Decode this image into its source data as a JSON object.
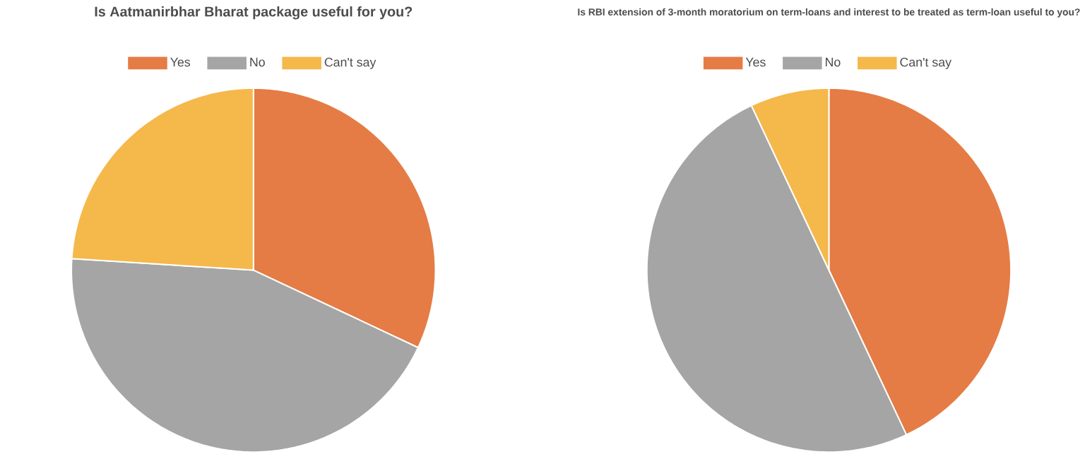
{
  "chart_data": [
    {
      "type": "pie",
      "title": "Is Aatmanirbhar Bharat package useful for you?",
      "categories": [
        "Yes",
        "No",
        "Can't say"
      ],
      "values": [
        32,
        44,
        24
      ],
      "colors": [
        "#e57c45",
        "#a5a5a5",
        "#f5b84a"
      ],
      "legend": "top"
    },
    {
      "type": "pie",
      "title": "Is RBI extension of 3-month moratorium on term-loans and interest to be treated as term-loan useful to you?",
      "categories": [
        "Yes",
        "No",
        "Can't say"
      ],
      "values": [
        43,
        50,
        7
      ],
      "colors": [
        "#e57c45",
        "#a5a5a5",
        "#f5b84a"
      ],
      "legend": "top"
    }
  ]
}
